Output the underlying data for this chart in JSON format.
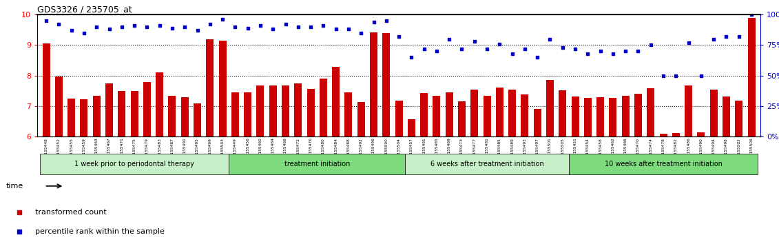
{
  "title": "GDS3326 / 235705_at",
  "samples": [
    "GSM155448",
    "GSM155452",
    "GSM155455",
    "GSM155459",
    "GSM155463",
    "GSM155467",
    "GSM155471",
    "GSM155475",
    "GSM155479",
    "GSM155483",
    "GSM155487",
    "GSM155491",
    "GSM155495",
    "GSM155499",
    "GSM155503",
    "GSM155449",
    "GSM155456",
    "GSM155460",
    "GSM155464",
    "GSM155468",
    "GSM155472",
    "GSM155476",
    "GSM155480",
    "GSM155484",
    "GSM155488",
    "GSM155492",
    "GSM155496",
    "GSM155500",
    "GSM155504",
    "GSM155457",
    "GSM155461",
    "GSM155465",
    "GSM155469",
    "GSM155473",
    "GSM155477",
    "GSM155481",
    "GSM155485",
    "GSM155489",
    "GSM155493",
    "GSM155497",
    "GSM155501",
    "GSM155505",
    "GSM155451",
    "GSM155454",
    "GSM155458",
    "GSM155462",
    "GSM155466",
    "GSM155470",
    "GSM155474",
    "GSM155478",
    "GSM155482",
    "GSM155486",
    "GSM155490",
    "GSM155494",
    "GSM155498",
    "GSM155502",
    "GSM155506"
  ],
  "bar_values": [
    9.05,
    7.98,
    7.25,
    7.22,
    7.33,
    7.75,
    7.5,
    7.5,
    7.78,
    8.1,
    7.34,
    7.29,
    7.1,
    9.2,
    9.15,
    7.45,
    7.45,
    7.68,
    7.67,
    7.68,
    7.75,
    7.56,
    7.9,
    8.28,
    7.45,
    7.14,
    9.42,
    9.39,
    7.18,
    6.58,
    7.42,
    7.35,
    7.45,
    7.15,
    7.55,
    7.35,
    7.61,
    7.54,
    7.39,
    6.9,
    7.85,
    7.52,
    7.32,
    7.28,
    7.3,
    7.28,
    7.33,
    7.41,
    7.58,
    6.1,
    6.12,
    7.67,
    6.13,
    7.55,
    7.32,
    7.18,
    9.9
  ],
  "percentile_values": [
    95,
    92,
    87,
    85,
    90,
    88,
    90,
    91,
    90,
    91,
    89,
    90,
    87,
    92,
    96,
    90,
    89,
    91,
    88,
    92,
    90,
    90,
    91,
    88,
    88,
    85,
    94,
    95,
    82,
    65,
    72,
    70,
    80,
    72,
    78,
    72,
    76,
    68,
    72,
    65,
    80,
    73,
    72,
    68,
    70,
    68,
    70,
    70,
    75,
    50,
    50,
    77,
    50,
    80,
    82,
    82,
    100
  ],
  "group_labels": [
    "1 week prior to periodontal therapy",
    "treatment initiation",
    "6 weeks after treatment initiation",
    "10 weeks after treatment initiation"
  ],
  "group_sizes": [
    15,
    14,
    13,
    15
  ],
  "group_colors": [
    "#c8f0c8",
    "#7ddb7d",
    "#c8f0c8",
    "#7ddb7d"
  ],
  "ylim_left": [
    6,
    10
  ],
  "ylim_right": [
    0,
    100
  ],
  "yticks_left": [
    6,
    7,
    8,
    9,
    10
  ],
  "yticks_right": [
    0,
    25,
    50,
    75,
    100
  ],
  "bar_color": "#cc0000",
  "dot_color": "#0000cc",
  "legend_bar_label": "transformed count",
  "legend_dot_label": "percentile rank within the sample",
  "background_color": "#ffffff"
}
